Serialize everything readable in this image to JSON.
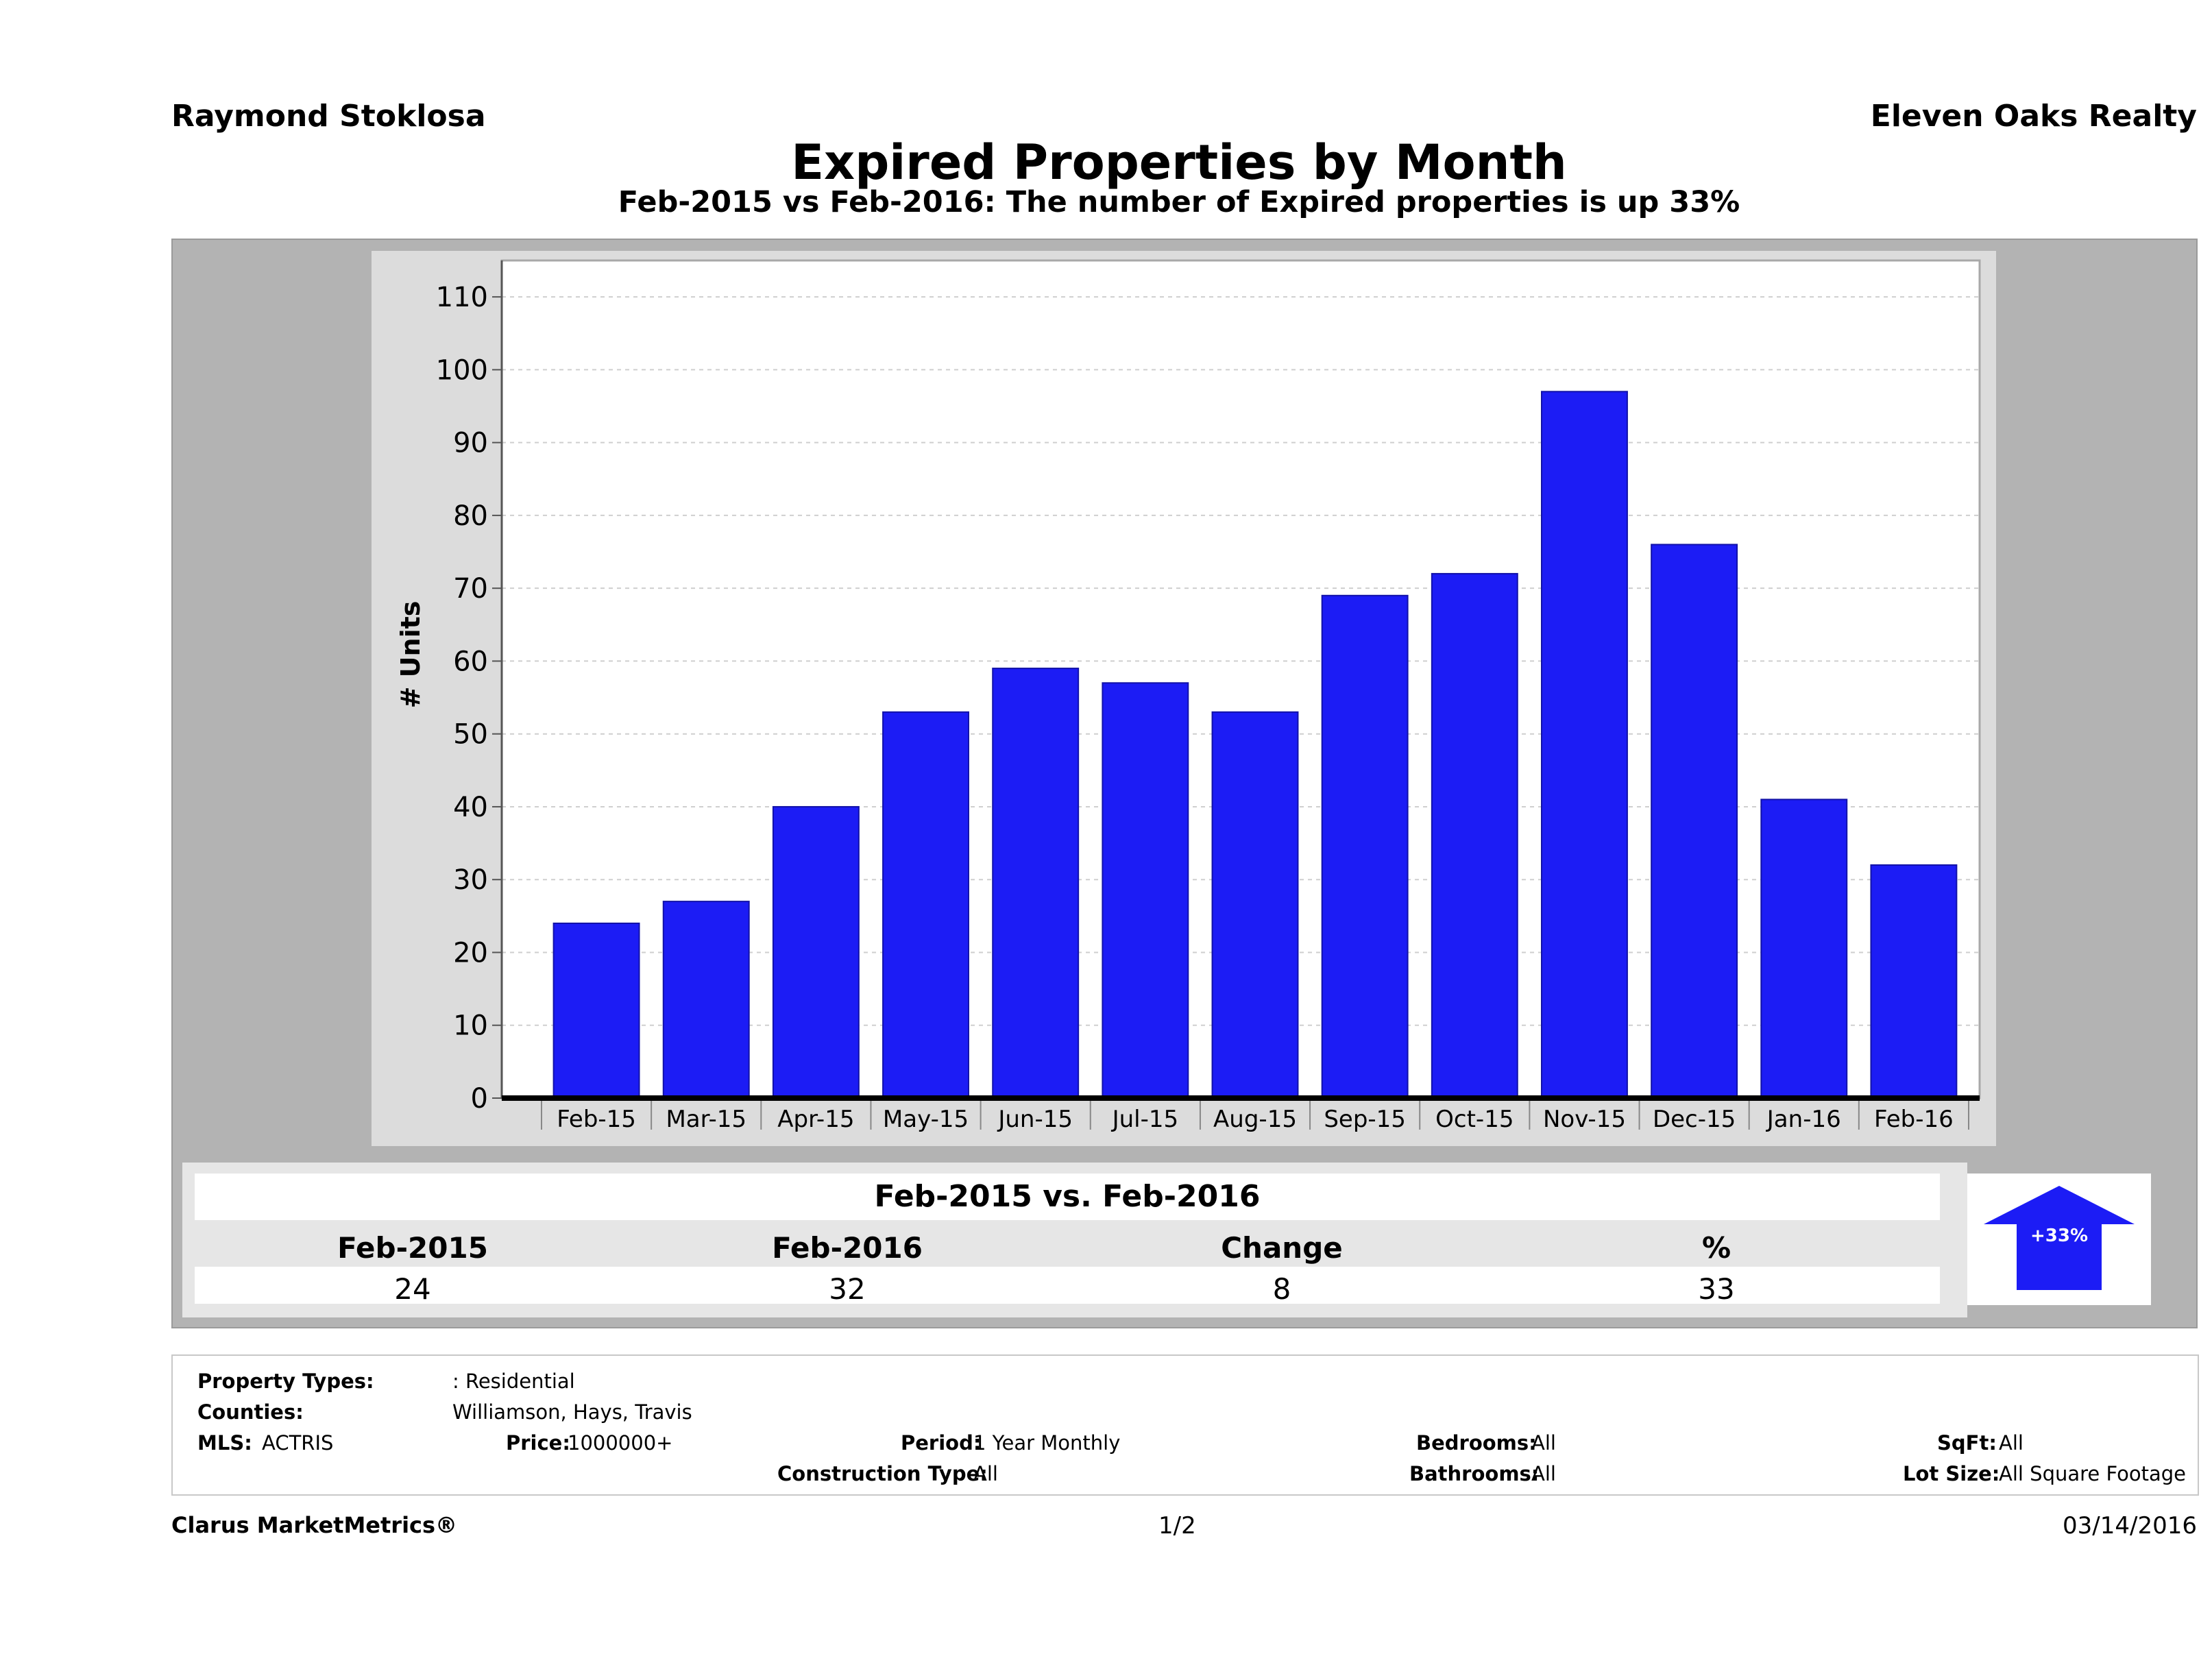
{
  "header": {
    "agent": "Raymond Stoklosa",
    "company": "Eleven Oaks Realty",
    "title": "Expired Properties by Month",
    "subtitle": "Feb-2015 vs Feb-2016: The number of Expired  properties is up 33%"
  },
  "chart_data": {
    "type": "bar",
    "categories": [
      "Feb-15",
      "Mar-15",
      "Apr-15",
      "May-15",
      "Jun-15",
      "Jul-15",
      "Aug-15",
      "Sep-15",
      "Oct-15",
      "Nov-15",
      "Dec-15",
      "Jan-16",
      "Feb-16"
    ],
    "values": [
      24,
      27,
      40,
      53,
      59,
      57,
      53,
      69,
      72,
      97,
      76,
      41,
      32
    ],
    "ylabel": "# Units",
    "ylim": [
      0,
      115
    ],
    "yticks": [
      0,
      10,
      20,
      30,
      40,
      50,
      60,
      70,
      80,
      90,
      100,
      110
    ],
    "grid": true,
    "bar_color": "#1c1cf5"
  },
  "summary": {
    "title": "Feb-2015 vs. Feb-2016",
    "headers": [
      "Feb-2015",
      "Feb-2016",
      "Change",
      "%"
    ],
    "values": [
      "24",
      "32",
      "8",
      "33"
    ],
    "arrow_label": "+33%",
    "arrow_icon": "up-arrow-icon"
  },
  "info": {
    "property_types_label": "Property Types:",
    "property_types_value": ": Residential",
    "counties_label": "Counties:",
    "counties_value": "Williamson, Hays, Travis",
    "mls_label": "MLS:",
    "mls_value": "ACTRIS",
    "price_label": "Price:",
    "price_value": "1000000+",
    "period_label": "Period:",
    "period_value": "1 Year Monthly",
    "construction_label": "Construction Type:",
    "construction_value": "All",
    "bedrooms_label": "Bedrooms:",
    "bedrooms_value": "All",
    "bathrooms_label": "Bathrooms:",
    "bathrooms_value": "All",
    "sqft_label": "SqFt:",
    "sqft_value": "All",
    "lotsize_label": "Lot Size:",
    "lotsize_value": "All Square Footage"
  },
  "footer": {
    "brand": "Clarus MarketMetrics®",
    "page": "1/2",
    "date": "03/14/2016"
  }
}
